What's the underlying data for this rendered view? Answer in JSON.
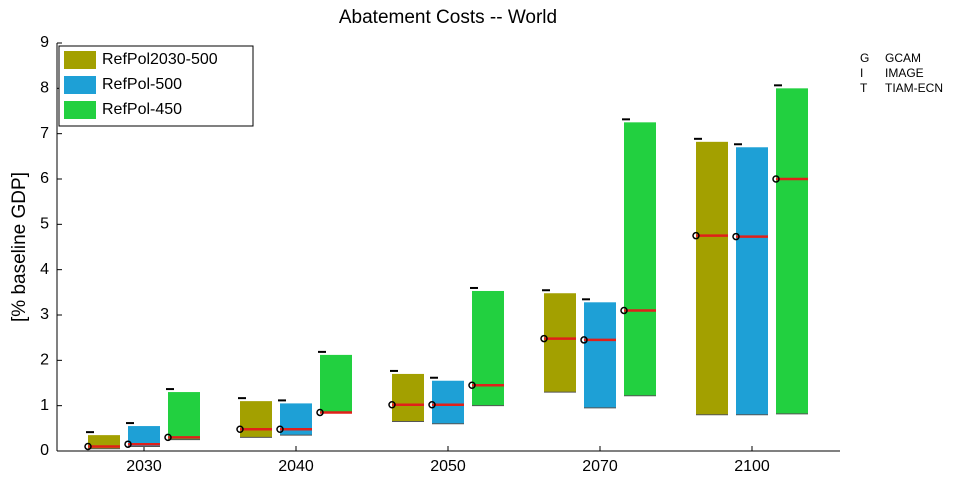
{
  "chart_data": {
    "type": "range-bar",
    "title": "Abatement Costs -- World",
    "ylabel": "[% baseline GDP]",
    "categories": [
      "2030",
      "2040",
      "2050",
      "2070",
      "2100"
    ],
    "series": [
      {
        "name": "RefPol2030-500",
        "color": "#a3a000",
        "low": [
          0.05,
          0.3,
          0.65,
          1.3,
          0.8
        ],
        "high": [
          0.35,
          1.1,
          1.7,
          3.48,
          6.82
        ],
        "median": [
          0.1,
          0.48,
          1.02,
          2.48,
          4.75
        ]
      },
      {
        "name": "RefPol-500",
        "color": "#1ea0d6",
        "low": [
          0.1,
          0.35,
          0.6,
          0.95,
          0.8
        ],
        "high": [
          0.55,
          1.05,
          1.55,
          3.28,
          6.7
        ],
        "median": [
          0.15,
          0.48,
          1.02,
          2.45,
          4.73
        ]
      },
      {
        "name": "RefPol-450",
        "color": "#22d040",
        "low": [
          0.25,
          0.85,
          1.0,
          1.22,
          0.82
        ],
        "high": [
          1.3,
          2.12,
          3.53,
          7.25,
          8.0
        ],
        "median": [
          0.3,
          0.85,
          1.45,
          3.1,
          6.0
        ]
      }
    ],
    "median_color": "#e0201a",
    "ylim": [
      0,
      9
    ],
    "yticks": [
      0,
      1,
      2,
      3,
      4,
      5,
      6,
      7,
      8,
      9
    ],
    "legend": "upper left",
    "model_key": [
      {
        "letter": "G",
        "model": "GCAM"
      },
      {
        "letter": "I",
        "model": "IMAGE"
      },
      {
        "letter": "T",
        "model": "TIAM-ECN"
      }
    ]
  }
}
